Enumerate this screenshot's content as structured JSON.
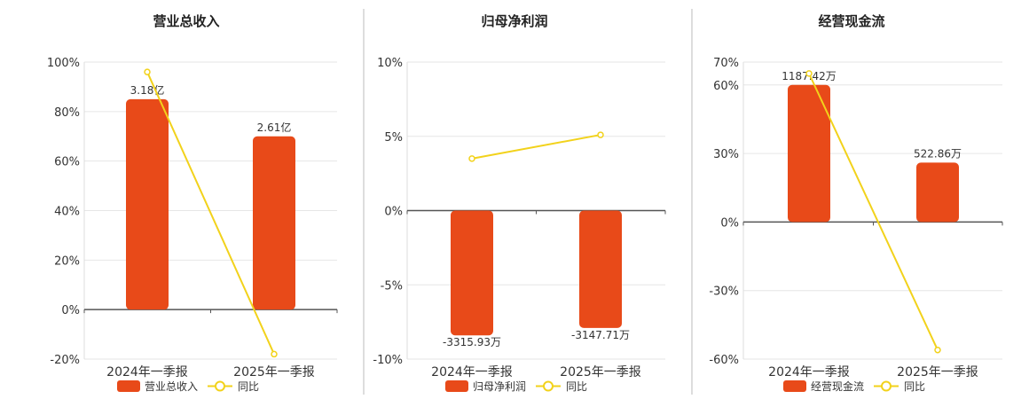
{
  "colors": {
    "bar": "#E84A19",
    "line": "#F2D21B",
    "grid": "#e6e6e6",
    "axis": "#555555",
    "divider": "#bbbbbb"
  },
  "legend": {
    "line_label": "同比"
  },
  "chart_data": [
    {
      "type": "bar",
      "title": "营业总收入",
      "categories": [
        "2024年一季报",
        "2025年一季报"
      ],
      "ylim": [
        -20,
        100
      ],
      "yticks": [
        -20,
        0,
        20,
        40,
        60,
        80,
        100
      ],
      "ytick_labels": [
        "-20%",
        "0%",
        "20%",
        "40%",
        "60%",
        "80%",
        "100%"
      ],
      "series": [
        {
          "name": "营业总收入",
          "type": "bar",
          "values": [
            85,
            70
          ],
          "labels": [
            "3.18亿",
            "2.61亿"
          ]
        },
        {
          "name": "同比",
          "type": "line",
          "values": [
            96,
            -18
          ]
        }
      ],
      "legend_position": "bottom"
    },
    {
      "type": "bar",
      "title": "归母净利润",
      "categories": [
        "2024年一季报",
        "2025年一季报"
      ],
      "ylim": [
        -10,
        10
      ],
      "yticks": [
        -10,
        -5,
        0,
        5,
        10
      ],
      "ytick_labels": [
        "-10%",
        "-5%",
        "0%",
        "5%",
        "10%"
      ],
      "series": [
        {
          "name": "归母净利润",
          "type": "bar",
          "values": [
            -8.4,
            -7.9
          ],
          "labels": [
            "-3315.93万",
            "-3147.71万"
          ]
        },
        {
          "name": "同比",
          "type": "line",
          "values": [
            3.5,
            5.1
          ]
        }
      ],
      "legend_position": "bottom"
    },
    {
      "type": "bar",
      "title": "经营现金流",
      "categories": [
        "2024年一季报",
        "2025年一季报"
      ],
      "ylim": [
        -60,
        70
      ],
      "yticks": [
        -60,
        -30,
        0,
        30,
        60,
        70
      ],
      "ytick_labels": [
        "-60%",
        "-30%",
        "0%",
        "30%",
        "60%",
        "70%"
      ],
      "series": [
        {
          "name": "经营现金流",
          "type": "bar",
          "values": [
            60,
            26
          ],
          "labels": [
            "1187.42万",
            "522.86万"
          ]
        },
        {
          "name": "同比",
          "type": "line",
          "values": [
            65,
            -56
          ]
        }
      ],
      "legend_position": "bottom"
    }
  ]
}
